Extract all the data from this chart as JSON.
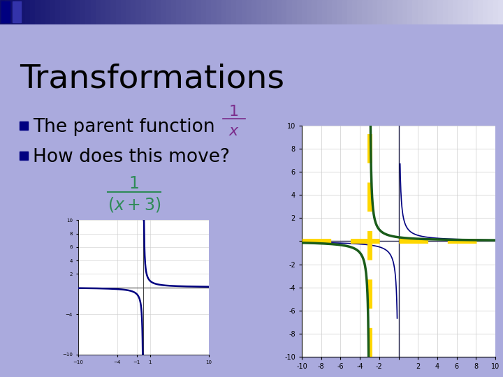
{
  "title": "Transformations",
  "title_fontsize": 34,
  "title_color": "#000000",
  "bg_color": "#AAAADD",
  "bullet1": "The parent function",
  "bullet2": "How does this move?",
  "bullet_color": "#000000",
  "bullet_fontsize": 19,
  "formula_color_purple": "#7B2D8B",
  "formula_color_teal": "#2E8B57",
  "graph_bg": "#FFFFFF",
  "curve_color": "#000080",
  "transformed_color": "#1A5C1A",
  "asymptote_yellow": "#FFD700",
  "header_left_color": "#0D0D6B",
  "header_right_color": "#DDDDF0",
  "sq1_color": "#000080",
  "sq2_color": "#3333AA"
}
